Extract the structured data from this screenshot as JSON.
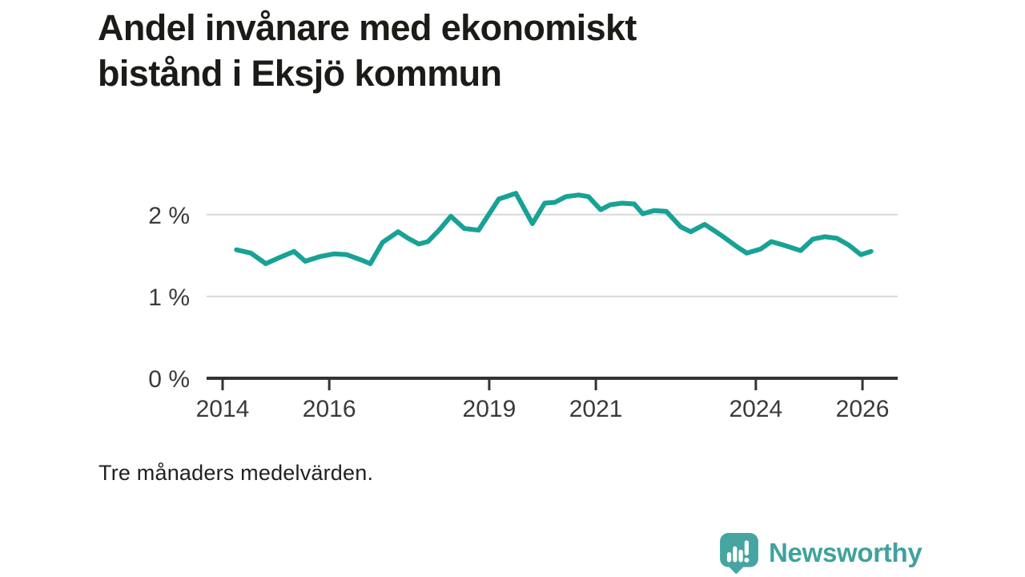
{
  "title": {
    "lines": [
      "Andel invånare med ekonomiskt",
      "bistånd i Eksjö kommun"
    ]
  },
  "footer": {
    "note": "Tre månaders medelvärden.",
    "brand_name": "Newsworthy"
  },
  "colors": {
    "line": "#18a295",
    "brand": "#3fa29d",
    "axis": "#333333",
    "grid": "#d9d9d9",
    "tick_text": "#3a3a3a",
    "title_text": "#1b1b17"
  },
  "chart_data": {
    "type": "line",
    "title": "Andel invånare med ekonomiskt bistånd i Eksjö kommun",
    "note": "Tre månaders medelvärden.",
    "unit": "%",
    "legend": "none",
    "grid": "horizontal",
    "xlim": [
      2013.7,
      2026.66
    ],
    "ylim": [
      0,
      2.37
    ],
    "xticks": [
      2014,
      2016,
      2019,
      2021,
      2024,
      2026
    ],
    "xtick_labels": [
      "2014",
      "2016",
      "2019",
      "2021",
      "2024",
      "2026"
    ],
    "yticks": [
      0,
      1,
      2
    ],
    "ytick_labels": [
      "0 %",
      "1 %",
      "2 %"
    ],
    "series": [
      {
        "name": "Andel invånare med ekonomiskt bistånd (Eksjö kommun)",
        "x": [
          2014.26,
          2014.53,
          2014.81,
          2015.05,
          2015.34,
          2015.55,
          2015.84,
          2016.09,
          2016.33,
          2016.58,
          2016.77,
          2017.0,
          2017.29,
          2017.48,
          2017.68,
          2017.85,
          2018.06,
          2018.28,
          2018.53,
          2018.8,
          2019.0,
          2019.18,
          2019.5,
          2019.81,
          2020.04,
          2020.23,
          2020.44,
          2020.68,
          2020.86,
          2021.09,
          2021.27,
          2021.49,
          2021.72,
          2021.88,
          2022.09,
          2022.32,
          2022.59,
          2022.78,
          2023.04,
          2023.23,
          2023.41,
          2023.64,
          2023.83,
          2024.09,
          2024.29,
          2024.51,
          2024.84,
          2025.07,
          2025.29,
          2025.52,
          2025.74,
          2025.97,
          2026.16
        ],
        "values": [
          1.57,
          1.53,
          1.4,
          1.47,
          1.55,
          1.43,
          1.49,
          1.52,
          1.51,
          1.45,
          1.4,
          1.66,
          1.79,
          1.71,
          1.64,
          1.67,
          1.81,
          1.98,
          1.83,
          1.81,
          2.01,
          2.19,
          2.26,
          1.89,
          2.14,
          2.15,
          2.22,
          2.24,
          2.22,
          2.06,
          2.12,
          2.14,
          2.13,
          2.01,
          2.05,
          2.04,
          1.85,
          1.79,
          1.88,
          1.8,
          1.72,
          1.61,
          1.53,
          1.58,
          1.67,
          1.63,
          1.56,
          1.7,
          1.73,
          1.71,
          1.63,
          1.51,
          1.55
        ]
      }
    ]
  }
}
